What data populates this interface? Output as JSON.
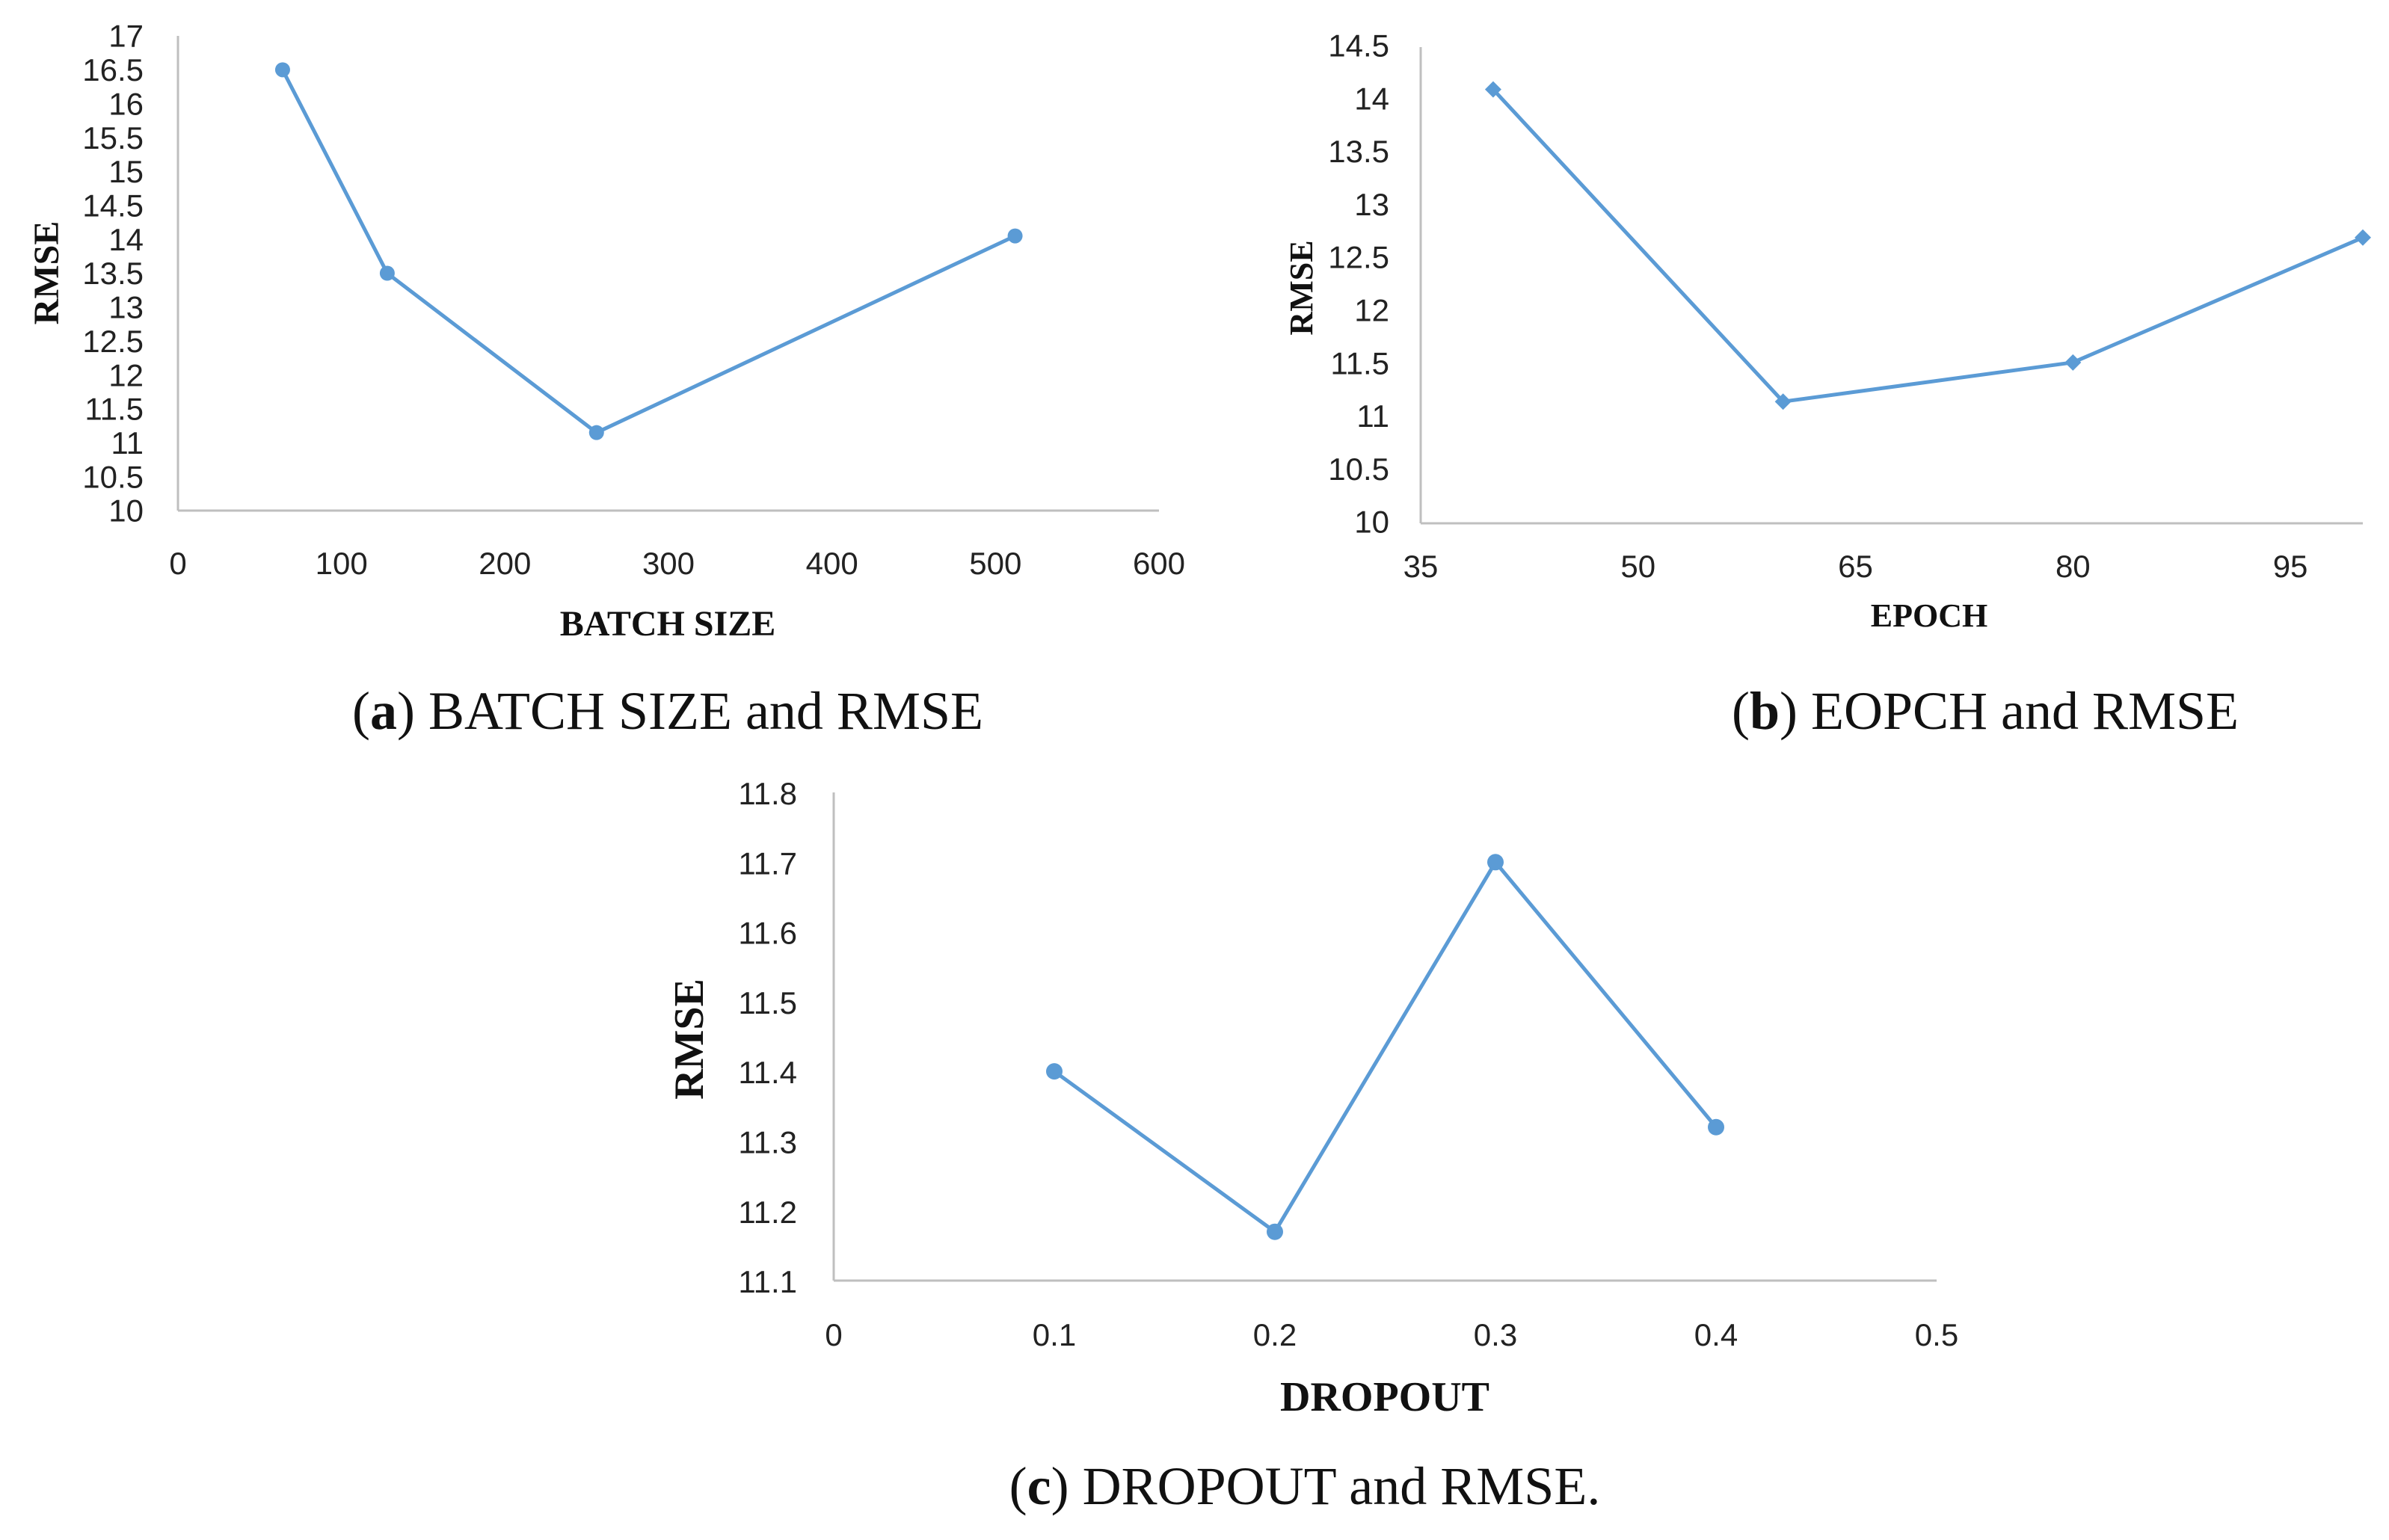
{
  "colors": {
    "series": "#5b9bd5",
    "axis": "#bfbfbf",
    "text": "#222222"
  },
  "chart_data": [
    {
      "id": "a",
      "type": "line",
      "marker": "circle",
      "x": [
        64,
        128,
        256,
        512
      ],
      "y": [
        16.5,
        13.5,
        11.15,
        14.05
      ],
      "xlim": [
        0,
        600
      ],
      "ylim": [
        10,
        17
      ],
      "xticks": [
        0,
        100,
        200,
        300,
        400,
        500,
        600
      ],
      "yticks": [
        10,
        10.5,
        11,
        11.5,
        12,
        12.5,
        13,
        13.5,
        14,
        14.5,
        15,
        15.5,
        16,
        16.5,
        17
      ],
      "xlabel": "BATCH SIZE",
      "ylabel": "RMSE",
      "caption_letter": "a",
      "caption_text": " BATCH SIZE and RMSE",
      "grid": false
    },
    {
      "id": "b",
      "type": "line",
      "marker": "diamond",
      "x": [
        40,
        60,
        80,
        100
      ],
      "y": [
        14.1,
        11.15,
        11.52,
        12.7
      ],
      "xlim": [
        35,
        100
      ],
      "ylim": [
        10,
        14.5
      ],
      "xticks": [
        35,
        50,
        65,
        80,
        95
      ],
      "yticks": [
        10,
        10.5,
        11,
        11.5,
        12,
        12.5,
        13,
        13.5,
        14,
        14.5
      ],
      "xlabel": "EPOCH",
      "ylabel": "RMSE",
      "caption_letter": "b",
      "caption_text": " EOPCH and RMSE",
      "grid": false
    },
    {
      "id": "c",
      "type": "line",
      "marker": "circle",
      "x": [
        0.1,
        0.2,
        0.3,
        0.4
      ],
      "y": [
        11.4,
        11.17,
        11.7,
        11.32
      ],
      "xlim": [
        0,
        0.5
      ],
      "ylim": [
        11.1,
        11.8
      ],
      "xticks": [
        0,
        0.1,
        0.2,
        0.3,
        0.4,
        0.5
      ],
      "yticks": [
        11.1,
        11.2,
        11.3,
        11.4,
        11.5,
        11.6,
        11.7,
        11.8
      ],
      "xlabel": "DROPOUT",
      "ylabel": "RMSE",
      "caption_letter": "c",
      "caption_text": " DROPOUT and RMSE.",
      "grid": false
    }
  ]
}
